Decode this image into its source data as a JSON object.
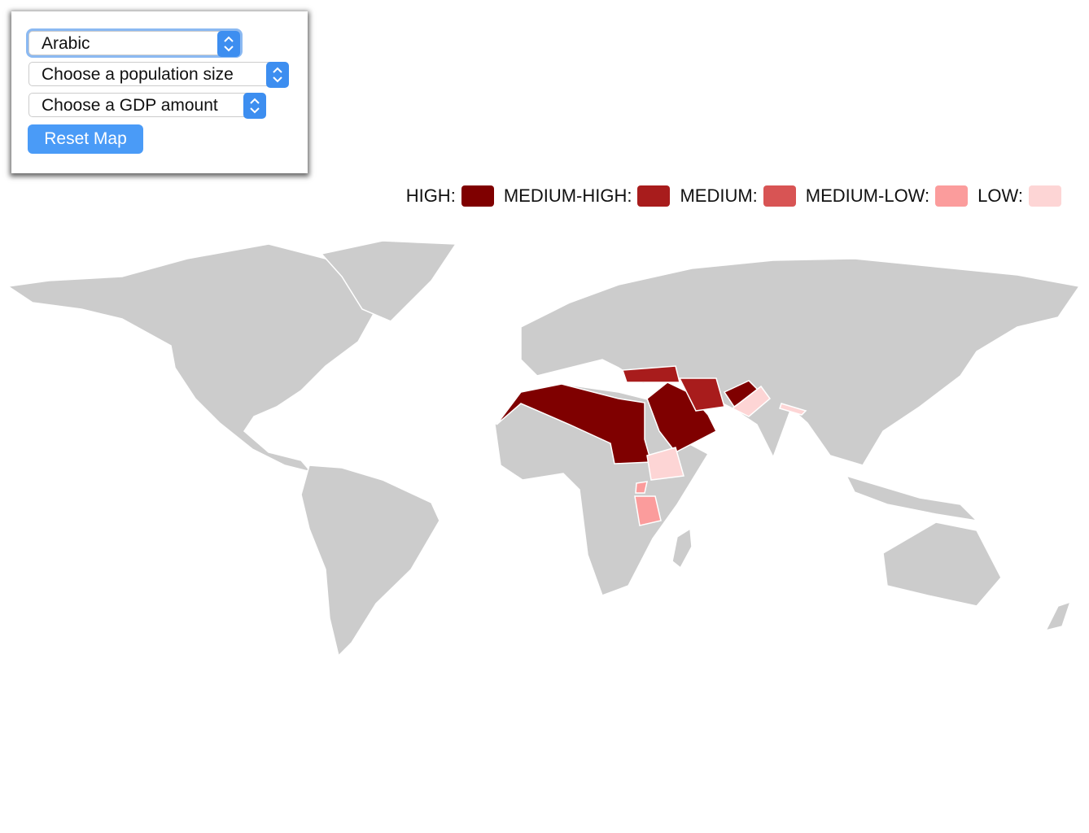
{
  "controls": {
    "language": "Arabic",
    "population": "Choose a population size",
    "gdp": "Choose a GDP amount",
    "reset": "Reset Map"
  },
  "legend": {
    "items": [
      {
        "label": "HIGH:",
        "color": "#7f0000"
      },
      {
        "label": "MEDIUM-HIGH:",
        "color": "#a81c1c"
      },
      {
        "label": "MEDIUM:",
        "color": "#d85454"
      },
      {
        "label": "MEDIUM-LOW:",
        "color": "#fb9c9c"
      },
      {
        "label": "LOW:",
        "color": "#fdd5d5"
      }
    ]
  }
}
